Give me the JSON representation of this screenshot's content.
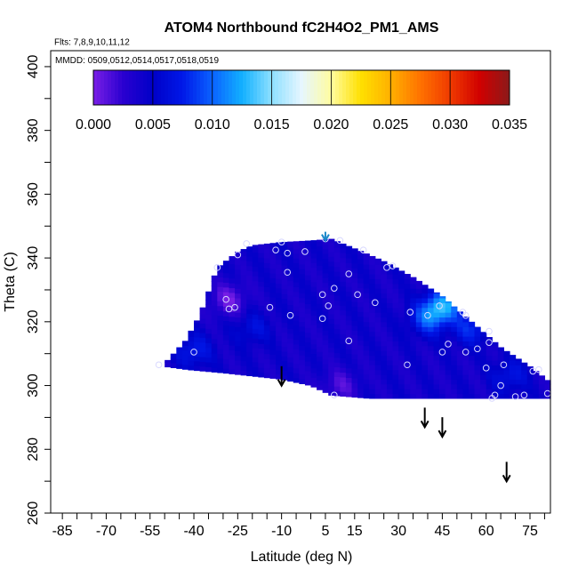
{
  "chart_data": {
    "type": "heatmap",
    "title": "ATOM4 Northbound fC2H4O2_PM1_AMS",
    "annotations": {
      "flights": "Flts: 7,8,9,10,11,12",
      "dates": "MMDD: 0509,0512,0514,0517,0518,0519"
    },
    "xlabel": "Latitude (deg N)",
    "ylabel": "Theta (C)",
    "xlim": [
      -89,
      82
    ],
    "ylim": [
      260,
      405
    ],
    "xticks": [
      -85,
      -70,
      -55,
      -40,
      -25,
      -10,
      5,
      15,
      30,
      45,
      60,
      75
    ],
    "xtick_labels": [
      "-85",
      "-70",
      "-55",
      "-40",
      "-25",
      "-10",
      "5",
      "15",
      "30",
      "45",
      "60",
      "75"
    ],
    "yticks": [
      260,
      280,
      300,
      320,
      340,
      360,
      380,
      400
    ],
    "ytick_labels": [
      "260",
      "280",
      "300",
      "320",
      "340",
      "360",
      "380",
      "400"
    ],
    "colorbar": {
      "range": [
        0,
        0.035
      ],
      "ticks": [
        0,
        0.005,
        0.01,
        0.015,
        0.02,
        0.025,
        0.03,
        0.035
      ],
      "tick_labels": [
        "0.000",
        "0.005",
        "0.010",
        "0.015",
        "0.020",
        "0.025",
        "0.030",
        "0.035"
      ],
      "colors": [
        "#7a1fe6",
        "#2a00d0",
        "#0000c8",
        "#0018e8",
        "#0a62ff",
        "#12b0ff",
        "#8ee0ff",
        "#e6f6ff",
        "#fffca0",
        "#ffe000",
        "#ffb000",
        "#ff7200",
        "#f03a00",
        "#d00000",
        "#8b1a1a"
      ]
    },
    "field_region": {
      "top_edge": [
        [
          -50,
          307
        ],
        [
          -43,
          314
        ],
        [
          -38,
          322
        ],
        [
          -32,
          337
        ],
        [
          -25,
          342
        ],
        [
          -20,
          344
        ],
        [
          -10,
          345
        ],
        [
          0,
          345.5
        ],
        [
          7,
          346
        ],
        [
          15,
          343
        ],
        [
          25,
          339
        ],
        [
          35,
          334
        ],
        [
          45,
          328
        ],
        [
          55,
          320
        ],
        [
          65,
          312
        ],
        [
          75,
          306
        ],
        [
          82,
          301
        ]
      ],
      "bottom_edge": [
        [
          -50,
          306
        ],
        [
          -42,
          305
        ],
        [
          -30,
          304
        ],
        [
          -20,
          303
        ],
        [
          -10,
          302
        ],
        [
          0,
          300
        ],
        [
          7,
          297
        ],
        [
          20,
          296
        ],
        [
          40,
          296
        ],
        [
          60,
          296
        ],
        [
          82,
          296
        ]
      ],
      "base_value": 0.004,
      "hot_spots": [
        {
          "lat": -28,
          "theta": 327,
          "value": 0.0005
        },
        {
          "lat": 45,
          "theta": 325,
          "value": 0.012
        },
        {
          "lat": 40,
          "theta": 321,
          "value": 0.009
        },
        {
          "lat": 55,
          "theta": 318,
          "value": 0.008
        },
        {
          "lat": -40,
          "theta": 311,
          "value": 0.0075
        },
        {
          "lat": -20,
          "theta": 318,
          "value": 0.0065
        },
        {
          "lat": 68,
          "theta": 303,
          "value": 0.007
        },
        {
          "lat": 10,
          "theta": 300,
          "value": 0.0015
        }
      ]
    },
    "sample_points": [
      [
        -52,
        306.5
      ],
      [
        -40,
        310.5
      ],
      [
        -32,
        337
      ],
      [
        -29,
        327
      ],
      [
        -28,
        324
      ],
      [
        -26,
        324.5
      ],
      [
        -25,
        341
      ],
      [
        -22,
        344.5
      ],
      [
        -14,
        324.5
      ],
      [
        -12,
        342.5
      ],
      [
        -10,
        345
      ],
      [
        -8,
        335.5
      ],
      [
        -8,
        341.5
      ],
      [
        -7,
        322
      ],
      [
        -2,
        342
      ],
      [
        4,
        328.5
      ],
      [
        4,
        321
      ],
      [
        5,
        346
      ],
      [
        6,
        325
      ],
      [
        8,
        330.5
      ],
      [
        10,
        345.5
      ],
      [
        13,
        335
      ],
      [
        13,
        314
      ],
      [
        16,
        328.5
      ],
      [
        18,
        342.5
      ],
      [
        22,
        326
      ],
      [
        26,
        337
      ],
      [
        28,
        337.5
      ],
      [
        33,
        306.5
      ],
      [
        34,
        323
      ],
      [
        40,
        322
      ],
      [
        44,
        325
      ],
      [
        45,
        310.5
      ],
      [
        47,
        313
      ],
      [
        52,
        323
      ],
      [
        53,
        322
      ],
      [
        53,
        310.5
      ],
      [
        57,
        311.5
      ],
      [
        60,
        305.5
      ],
      [
        61,
        317
      ],
      [
        61,
        313.5
      ],
      [
        62,
        296
      ],
      [
        63,
        297
      ],
      [
        65,
        300
      ],
      [
        66,
        306.5
      ],
      [
        70,
        296.5
      ],
      [
        73,
        297
      ],
      [
        76,
        304.5
      ],
      [
        78,
        305
      ],
      [
        81,
        297.5
      ],
      [
        8,
        297
      ]
    ],
    "arrows": [
      {
        "lat": -10,
        "theta": 303,
        "color": "#000000"
      },
      {
        "lat": 39,
        "theta": 290,
        "color": "#000000"
      },
      {
        "lat": 45,
        "theta": 287,
        "color": "#000000"
      },
      {
        "lat": 67,
        "theta": 273,
        "color": "#000000"
      },
      {
        "lat": 5,
        "theta": 348.5,
        "color": "#1a88c8"
      }
    ]
  }
}
